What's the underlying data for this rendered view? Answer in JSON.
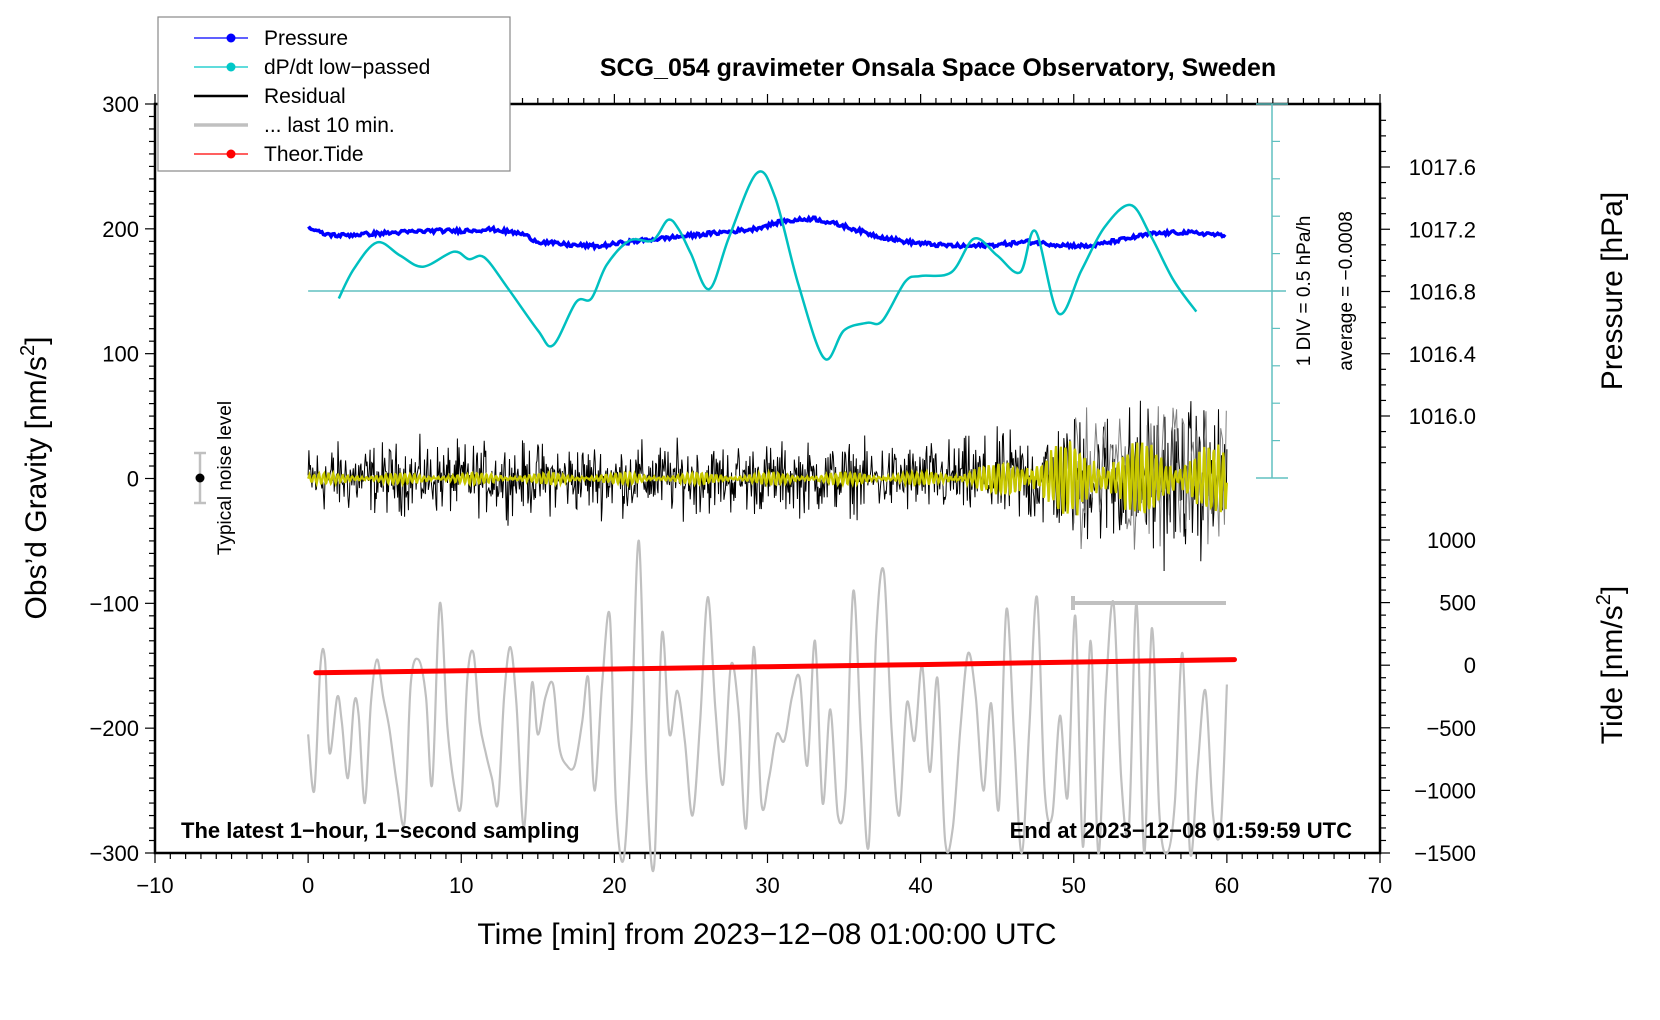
{
  "chart_data": {
    "type": "line",
    "title": "SCG_054 gravimeter Onsala Space Observatory, Sweden",
    "xlabel": "Time [min] from 2023−12−08 01:00:00 UTC",
    "xlim": [
      -10,
      70
    ],
    "x_ticks": [
      -10,
      0,
      10,
      20,
      30,
      40,
      50,
      60,
      70
    ],
    "x_tick_labels": [
      "−10",
      "0",
      "10",
      "20",
      "30",
      "40",
      "50",
      "60",
      "70"
    ],
    "axes": {
      "left": {
        "label": "Obs’d Gravity [nm/s",
        "label_sup": "2",
        "label_end": "]",
        "ylim": [
          -300,
          300
        ],
        "ticks": [
          300,
          200,
          100,
          0,
          -100,
          -200,
          -300
        ],
        "tick_labels": [
          "300",
          "200",
          "100",
          "0",
          "−100",
          "−200",
          "−300"
        ]
      },
      "right_pressure": {
        "label": "Pressure [hPa]",
        "ticks": [
          1017.6,
          1017.2,
          1016.8,
          1016.4,
          1016.0
        ],
        "tick_labels": [
          "1017.6",
          "1017.2",
          "1016.8",
          "1016.4",
          "1016.0"
        ],
        "ylim": [
          1015.6,
          1017.99
        ]
      },
      "right_tide": {
        "label": "Tide [nm/s",
        "label_sup": "2",
        "label_end": "]",
        "ticks": [
          1000,
          500,
          0,
          -500,
          -1000,
          -1500
        ],
        "tick_labels": [
          "1000",
          "500",
          "0",
          "−500",
          "−1000",
          "−1500"
        ],
        "ylim": [
          -1500,
          3800
        ]
      }
    },
    "legend": {
      "position": "top-left",
      "entries": [
        {
          "label": "Pressure",
          "color": "#0000ff",
          "marker": true
        },
        {
          "label": "dP/dt low−passed",
          "color": "#00c8c8",
          "marker": true
        },
        {
          "label": "Residual",
          "color": "#000000",
          "marker": false
        },
        {
          "label": "... last 10 min.",
          "color": "#c0c0c0",
          "marker": false
        },
        {
          "label": "Theor.Tide",
          "color": "#ff0000",
          "marker": true
        }
      ]
    },
    "series": [
      {
        "name": "Pressure",
        "axis": "right_pressure",
        "color": "#0000ff",
        "x": [
          0,
          1,
          2,
          4,
          6,
          8,
          10,
          12,
          14,
          15,
          17,
          19,
          21,
          23,
          25,
          27,
          29,
          31,
          33,
          35,
          37,
          39,
          41,
          43,
          45,
          47,
          49,
          51,
          53,
          55,
          57,
          59,
          60
        ],
        "y": [
          1017.21,
          1017.17,
          1017.16,
          1017.17,
          1017.18,
          1017.19,
          1017.19,
          1017.2,
          1017.17,
          1017.12,
          1017.1,
          1017.09,
          1017.12,
          1017.14,
          1017.16,
          1017.18,
          1017.2,
          1017.25,
          1017.27,
          1017.22,
          1017.16,
          1017.12,
          1017.1,
          1017.09,
          1017.1,
          1017.12,
          1017.1,
          1017.09,
          1017.13,
          1017.17,
          1017.18,
          1017.17,
          1017.15
        ]
      },
      {
        "name": "dP/dt low-passed",
        "axis": "dpdt_scale",
        "color": "#00c0c0",
        "scale_note": "1 DIV = 0.5 hPa/h",
        "x": [
          2,
          3,
          4.5,
          6,
          7.5,
          9.5,
          10.5,
          11.5,
          13,
          15,
          16,
          17.5,
          18.5,
          19.5,
          21,
          22.5,
          23.5,
          24.2,
          25,
          26.2,
          27.5,
          29.3,
          30.5,
          32,
          33.7,
          35,
          36.5,
          37.5,
          39,
          40,
          42,
          43.5,
          45,
          46.5,
          47.5,
          49,
          50.5,
          52,
          53.7,
          55,
          56.5,
          58
        ],
        "y": [
          -0.2,
          0.6,
          1.3,
          0.95,
          0.65,
          1.05,
          0.85,
          0.9,
          0.1,
          -1.05,
          -1.45,
          -0.3,
          -0.2,
          0.7,
          1.35,
          1.35,
          1.9,
          1.65,
          1.0,
          0.05,
          1.45,
          3.15,
          2.5,
          0.2,
          -1.8,
          -1.05,
          -0.85,
          -0.8,
          0.25,
          0.4,
          0.5,
          1.4,
          0.95,
          0.5,
          1.6,
          -0.6,
          0.55,
          1.7,
          2.3,
          1.5,
          0.3,
          -0.55
        ]
      },
      {
        "name": "Residual",
        "axis": "left",
        "color": "#000000",
        "x_range": [
          0,
          60
        ],
        "envelope_amplitude": {
          "x": [
            0,
            40,
            45,
            50,
            55,
            60
          ],
          "amp": [
            40,
            40,
            50,
            70,
            90,
            80
          ]
        }
      },
      {
        "name": "Residual low-passed",
        "axis": "left",
        "color": "#c8c800",
        "x_range": [
          0,
          60
        ],
        "envelope_amplitude": {
          "x": [
            0,
            40,
            45,
            47,
            50,
            55,
            60
          ],
          "amp": [
            4,
            5,
            12,
            25,
            30,
            30,
            25
          ]
        }
      },
      {
        "name": "Residual last 10 min",
        "axis": "left",
        "color": "#808080",
        "x_range": [
          50,
          60
        ]
      },
      {
        "name": "Theor.Tide",
        "axis": "right_tide",
        "color": "#ff0000",
        "x": [
          0.5,
          10,
          20,
          30,
          40,
          50,
          60.5
        ],
        "y": [
          -60,
          -45,
          -30,
          -12,
          5,
          25,
          45
        ]
      },
      {
        "name": "... last 10 min. (grey trace)",
        "axis": "left",
        "color": "#c0c0c0",
        "x": [
          0,
          0.4,
          0.8,
          1.1,
          1.4,
          1.9,
          2.2,
          2.6,
          3.0,
          3.3,
          3.7,
          4.1,
          4.5,
          4.9,
          5.3,
          5.8,
          6.3,
          6.7,
          7.2,
          7.7,
          8.1,
          8.6,
          9.1,
          9.6,
          10.0,
          10.4,
          10.8,
          11.2,
          11.6,
          12.0,
          12.4,
          12.8,
          13.2,
          13.6,
          14.1,
          14.6,
          15.0,
          15.5,
          16.0,
          16.4,
          16.9,
          17.4,
          17.9,
          18.3,
          18.7,
          19.2,
          19.7,
          20.1,
          20.6,
          21.1,
          21.6,
          22.1,
          22.6,
          23.1,
          23.6,
          24.1,
          24.6,
          25.1,
          25.6,
          26.1,
          26.6,
          27.1,
          27.6,
          28.1,
          28.6,
          29.1,
          29.6,
          30.1,
          30.6,
          31.1,
          31.6,
          32.1,
          32.6,
          33.1,
          33.6,
          34.1,
          34.6,
          35.1,
          35.6,
          36.1,
          36.6,
          37.1,
          37.6,
          38.1,
          38.6,
          39.1,
          39.6,
          40.1,
          40.6,
          41.1,
          41.6,
          42.1,
          42.6,
          43.1,
          43.6,
          44.1,
          44.6,
          45.1,
          45.6,
          46.1,
          46.6,
          47.1,
          47.6,
          48.1,
          48.6,
          49.1,
          49.6,
          50.1,
          50.6,
          51.1,
          51.6,
          52.1,
          52.6,
          53.1,
          53.6,
          54.1,
          54.6,
          55.1,
          55.6,
          56.1,
          56.6,
          57.1,
          57.6,
          58.1,
          58.6,
          59.1,
          59.6,
          60.0
        ],
        "y": [
          -205,
          -250,
          -150,
          -145,
          -220,
          -175,
          -195,
          -240,
          -180,
          -190,
          -260,
          -180,
          -145,
          -175,
          -200,
          -245,
          -275,
          -165,
          -145,
          -175,
          -245,
          -100,
          -200,
          -250,
          -260,
          -160,
          -140,
          -195,
          -220,
          -240,
          -260,
          -175,
          -135,
          -180,
          -280,
          -165,
          -205,
          -175,
          -165,
          -215,
          -230,
          -230,
          -195,
          -160,
          -250,
          -165,
          -110,
          -260,
          -305,
          -205,
          -50,
          -240,
          -310,
          -125,
          -205,
          -170,
          -210,
          -270,
          -195,
          -95,
          -185,
          -245,
          -150,
          -185,
          -280,
          -135,
          -260,
          -240,
          -205,
          -210,
          -175,
          -160,
          -230,
          -130,
          -260,
          -185,
          -270,
          -250,
          -90,
          -205,
          -295,
          -125,
          -75,
          -200,
          -270,
          -180,
          -210,
          -150,
          -235,
          -160,
          -290,
          -280,
          -200,
          -140,
          -175,
          -250,
          -180,
          -265,
          -105,
          -205,
          -300,
          -200,
          -95,
          -250,
          -270,
          -190,
          -255,
          -110,
          -295,
          -130,
          -300,
          -170,
          -100,
          -240,
          -280,
          -100,
          -300,
          -120,
          -270,
          -300,
          -260,
          -140,
          -300,
          -230,
          -170,
          -270,
          -280,
          -165
        ]
      }
    ],
    "annotations": {
      "noise": {
        "label": "Typical noise level",
        "x": -7,
        "y": 0,
        "err": 20
      },
      "last10_bar": {
        "x_from": 50,
        "x_to": 60,
        "y": -100
      },
      "dpdt_scale_label": "1 DIV = 0.5 hPa/h",
      "dpdt_average_label": "average = −0.0008",
      "bottom_left": "The latest 1−hour, 1−second sampling",
      "bottom_right": "End at 2023−12−08 01:59:59 UTC"
    },
    "grid": false
  }
}
